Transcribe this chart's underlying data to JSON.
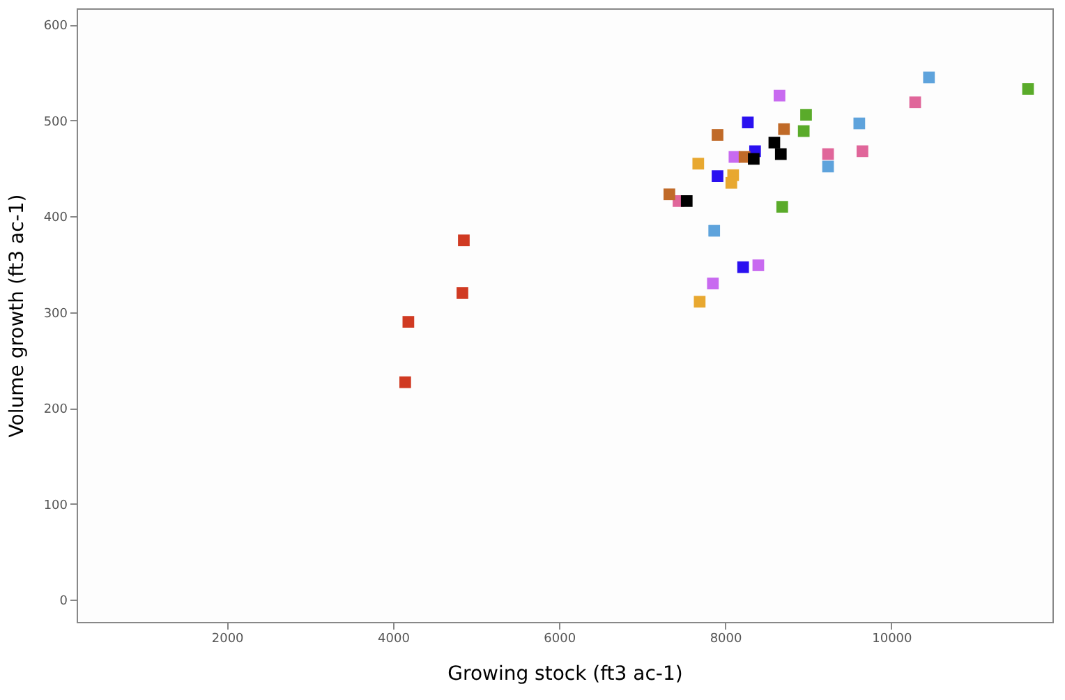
{
  "chart_data": {
    "type": "scatter",
    "xlabel": "Growing stock (ft3 ac-1)",
    "ylabel": "Volume growth (ft3 ac-1)",
    "xlim": [
      190,
      11940
    ],
    "ylim": [
      -23,
      617
    ],
    "xticks": [
      2000,
      4000,
      6000,
      8000,
      10000
    ],
    "yticks": [
      0,
      100,
      200,
      300,
      400,
      500,
      600
    ],
    "grid": false,
    "marker": "square",
    "series": [
      {
        "color": "#d03a22",
        "x": [
          4852,
          4835,
          4184,
          4146
        ],
        "values": [
          375,
          320,
          290,
          227
        ]
      },
      {
        "color": "#5aab2a",
        "x": [
          11646,
          8973,
          8945,
          8686
        ],
        "values": [
          533,
          506,
          489,
          410
        ]
      },
      {
        "color": "#5ea3dc",
        "x": [
          10453,
          9614,
          9238,
          7867
        ],
        "values": [
          545,
          497,
          452,
          385
        ]
      },
      {
        "color": "#e0669a",
        "x": [
          10287,
          9238,
          9652,
          7437
        ],
        "values": [
          519,
          465,
          468,
          416
        ]
      },
      {
        "color": "#c86af0",
        "x": [
          8653,
          8111,
          8398,
          7851
        ],
        "values": [
          526,
          462,
          349,
          330
        ]
      },
      {
        "color": "#2a10f0",
        "x": [
          8272,
          8359,
          7907,
          8215
        ],
        "values": [
          498,
          468,
          442,
          347
        ]
      },
      {
        "color": "#c06a28",
        "x": [
          7907,
          8707,
          8232,
          7327
        ],
        "values": [
          485,
          491,
          462,
          423
        ]
      },
      {
        "color": "#000000",
        "x": [
          8591,
          8669,
          8343,
          7536
        ],
        "values": [
          477,
          465,
          460,
          416
        ]
      },
      {
        "color": "#e8a830",
        "x": [
          7675,
          8095,
          8073,
          7692
        ],
        "values": [
          455,
          443,
          435,
          311
        ]
      }
    ]
  }
}
